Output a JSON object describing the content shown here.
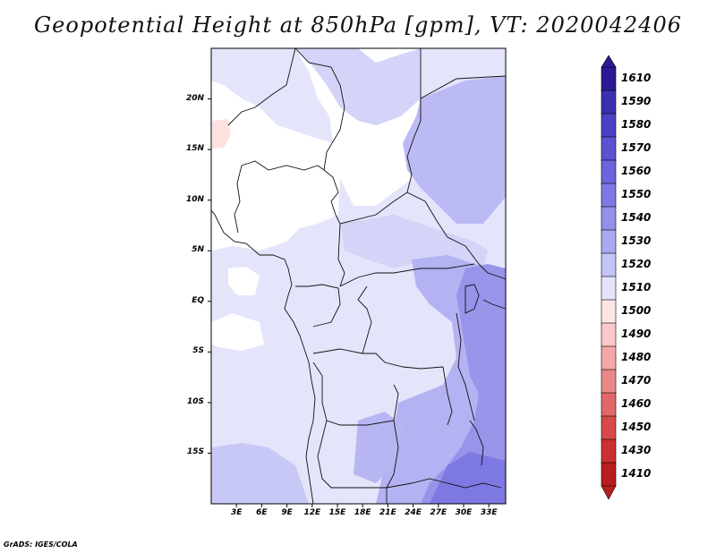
{
  "title": "Geopotential Height at 850hPa [gpm], VT: 2020042406",
  "footer": "GrADS: IGES/COLA",
  "map": {
    "lon_range": [
      0,
      35
    ],
    "lat_range": [
      -20,
      25
    ],
    "lat_ticks": [
      {
        "value": 20,
        "label": "20N"
      },
      {
        "value": 15,
        "label": "15N"
      },
      {
        "value": 10,
        "label": "10N"
      },
      {
        "value": 5,
        "label": "5N"
      },
      {
        "value": 0,
        "label": "EQ"
      },
      {
        "value": -5,
        "label": "5S"
      },
      {
        "value": -10,
        "label": "10S"
      },
      {
        "value": -15,
        "label": "15S"
      }
    ],
    "lon_ticks": [
      {
        "value": 3,
        "label": "3E"
      },
      {
        "value": 6,
        "label": "6E"
      },
      {
        "value": 9,
        "label": "9E"
      },
      {
        "value": 12,
        "label": "12E"
      },
      {
        "value": 15,
        "label": "15E"
      },
      {
        "value": 18,
        "label": "18E"
      },
      {
        "value": 21,
        "label": "21E"
      },
      {
        "value": 24,
        "label": "24E"
      },
      {
        "value": 27,
        "label": "27E"
      },
      {
        "value": 30,
        "label": "30E"
      },
      {
        "value": 33,
        "label": "33E"
      }
    ]
  },
  "colorbar": {
    "levels": [
      "1610",
      "1590",
      "1580",
      "1570",
      "1560",
      "1550",
      "1540",
      "1530",
      "1520",
      "1510",
      "1500",
      "1490",
      "1480",
      "1470",
      "1460",
      "1450",
      "1430",
      "1410"
    ],
    "colors": [
      "#2a1a96",
      "#3c2eb0",
      "#4c40c4",
      "#5c52d2",
      "#6c64dc",
      "#7e78e4",
      "#938fea",
      "#aaa8f0",
      "#c4c4f6",
      "#e4e4fb",
      "#fde6e6",
      "#fac8c8",
      "#f3a8a8",
      "#ea8888",
      "#e26868",
      "#d84a4a",
      "#cc3030",
      "#b81e1e"
    ]
  },
  "fields": {
    "background": "#e4e4fb",
    "shade_colors": {
      "white": "#ffffff",
      "pale": "#dcdcfa",
      "light": "#c8c8f6",
      "mid": "#b4b2f2",
      "deep": "#9894ea",
      "deeper": "#7e78e2",
      "pink": "#fde0e0"
    }
  }
}
